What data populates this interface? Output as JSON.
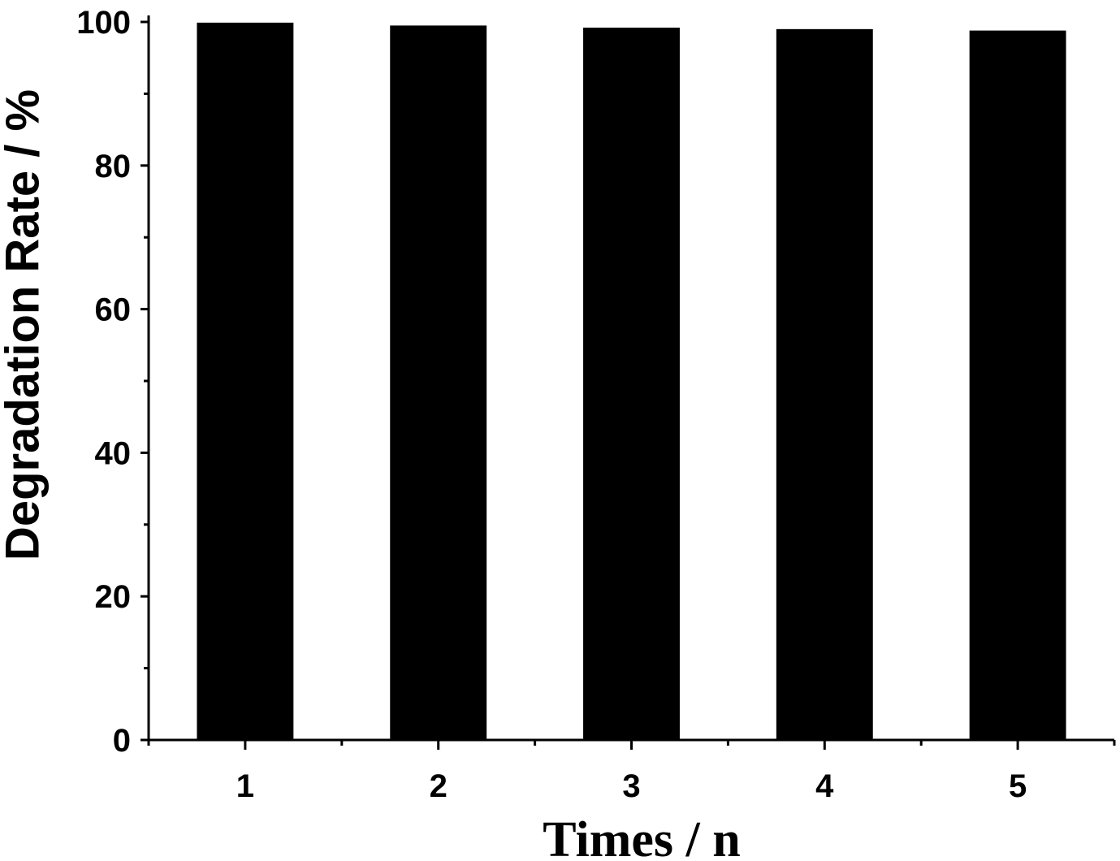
{
  "chart_data": {
    "type": "bar",
    "x_label": "Times / n",
    "y_label": "Degradation Rate / %",
    "categories": [
      "1",
      "2",
      "3",
      "4",
      "5"
    ],
    "values": [
      99.9,
      99.5,
      99.2,
      99.0,
      98.8
    ],
    "color": "#000000",
    "ylim": [
      0,
      100
    ],
    "yticks": [
      0,
      20,
      40,
      60,
      80,
      100
    ],
    "grid": false
  }
}
